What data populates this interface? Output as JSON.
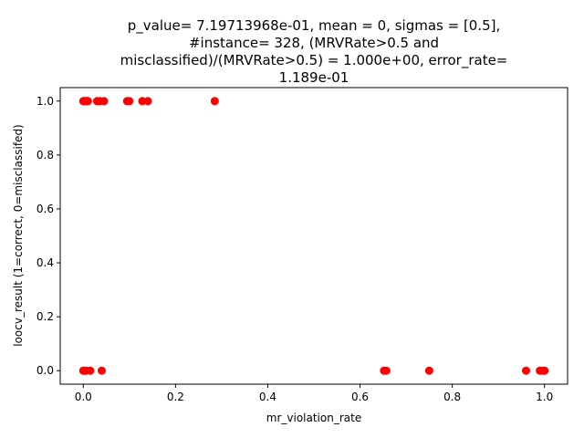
{
  "chart_data": {
    "type": "scatter",
    "title_lines": [
      "p_value= 7.19713968e-01, mean = 0, sigmas = [0.5],",
      "#instance= 328, (MRVRate>0.5 and",
      "misclassified)/(MRVRate>0.5) = 1.000e+00, error_rate=",
      "1.189e-01"
    ],
    "xlabel": "mr_violation_rate",
    "ylabel": "loocv_result (1=correct, 0=misclassifed)",
    "xlim": [
      -0.05,
      1.05
    ],
    "ylim": [
      -0.05,
      1.05
    ],
    "xticks": [
      0.0,
      0.2,
      0.4,
      0.6,
      0.8,
      1.0
    ],
    "xtick_labels": [
      "0.0",
      "0.2",
      "0.4",
      "0.6",
      "0.8",
      "1.0"
    ],
    "yticks": [
      0.0,
      0.2,
      0.4,
      0.6,
      0.8,
      1.0
    ],
    "ytick_labels": [
      "0.0",
      "0.2",
      "0.4",
      "0.6",
      "0.8",
      "1.0"
    ],
    "grid": false,
    "marker_color": "#ff0000",
    "points": [
      {
        "x": 0.0,
        "y": 1
      },
      {
        "x": 0.002,
        "y": 1
      },
      {
        "x": 0.004,
        "y": 1
      },
      {
        "x": 0.006,
        "y": 1
      },
      {
        "x": 0.008,
        "y": 1
      },
      {
        "x": 0.01,
        "y": 1
      },
      {
        "x": 0.03,
        "y": 1
      },
      {
        "x": 0.036,
        "y": 1
      },
      {
        "x": 0.045,
        "y": 1
      },
      {
        "x": 0.095,
        "y": 1
      },
      {
        "x": 0.1,
        "y": 1
      },
      {
        "x": 0.128,
        "y": 1
      },
      {
        "x": 0.14,
        "y": 1
      },
      {
        "x": 0.285,
        "y": 1
      },
      {
        "x": 0.0,
        "y": 0
      },
      {
        "x": 0.003,
        "y": 0
      },
      {
        "x": 0.006,
        "y": 0
      },
      {
        "x": 0.015,
        "y": 0
      },
      {
        "x": 0.04,
        "y": 0
      },
      {
        "x": 0.652,
        "y": 0
      },
      {
        "x": 0.657,
        "y": 0
      },
      {
        "x": 0.75,
        "y": 0
      },
      {
        "x": 0.96,
        "y": 0
      },
      {
        "x": 0.99,
        "y": 0
      },
      {
        "x": 0.995,
        "y": 0
      },
      {
        "x": 1.0,
        "y": 0
      }
    ]
  }
}
